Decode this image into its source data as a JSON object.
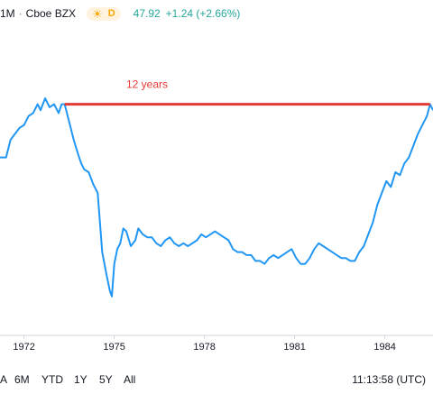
{
  "header": {
    "interval": "1M",
    "separator": "·",
    "exchange": "Cboe BZX",
    "sun_icon": "sun-icon",
    "d_badge": "D",
    "price": "47.92",
    "change": "+1.24 (+2.66%)",
    "change_color": "#26a69a"
  },
  "footer": {
    "ranges": [
      "A",
      "6M",
      "YTD",
      "1Y",
      "5Y",
      "All"
    ],
    "time": "11:13:58 (UTC)"
  },
  "chart_data": {
    "type": "line",
    "x_tick_labels": [
      "1972",
      "1975",
      "1978",
      "1981",
      "1984"
    ],
    "x_ticks": [
      1972,
      1975,
      1978,
      1981,
      1984
    ],
    "xlim": [
      1971.2,
      1985.6
    ],
    "ylim": [
      0,
      100
    ],
    "series": [
      {
        "color": "#2196f3",
        "x": [
          1971.2,
          1971.4,
          1971.55,
          1971.7,
          1971.85,
          1972.0,
          1972.15,
          1972.3,
          1972.45,
          1972.55,
          1972.7,
          1972.85,
          1973.0,
          1973.15,
          1973.25,
          1973.35,
          1973.5,
          1973.65,
          1973.8,
          1973.9,
          1974.0,
          1974.15,
          1974.3,
          1974.45,
          1974.6,
          1974.75,
          1974.85,
          1974.92,
          1975.0,
          1975.1,
          1975.2,
          1975.3,
          1975.4,
          1975.55,
          1975.7,
          1975.8,
          1975.95,
          1976.1,
          1976.25,
          1976.4,
          1976.55,
          1976.7,
          1976.85,
          1977.0,
          1977.15,
          1977.3,
          1977.45,
          1977.6,
          1977.75,
          1977.9,
          1978.05,
          1978.2,
          1978.35,
          1978.5,
          1978.65,
          1978.8,
          1978.95,
          1979.1,
          1979.25,
          1979.4,
          1979.55,
          1979.7,
          1979.85,
          1980.0,
          1980.15,
          1980.3,
          1980.45,
          1980.6,
          1980.75,
          1980.9,
          1981.05,
          1981.2,
          1981.35,
          1981.5,
          1981.65,
          1981.8,
          1981.95,
          1982.1,
          1982.25,
          1982.4,
          1982.55,
          1982.7,
          1982.85,
          1983.0,
          1983.15,
          1983.3,
          1983.45,
          1983.6,
          1983.75,
          1983.9,
          1984.05,
          1984.2,
          1984.35,
          1984.5,
          1984.65,
          1984.8,
          1984.95,
          1985.1,
          1985.25,
          1985.4,
          1985.5,
          1985.6
        ],
        "values": [
          62,
          62,
          68,
          70,
          72,
          73,
          76,
          77,
          80,
          78,
          82,
          79,
          80,
          77,
          80,
          80,
          74,
          68,
          63,
          60,
          58,
          57,
          53,
          50,
          30,
          22,
          17,
          15,
          26,
          31,
          33,
          38,
          37,
          32,
          34,
          38,
          36,
          35,
          35,
          33,
          32,
          34,
          35,
          33,
          32,
          33,
          32,
          33,
          34,
          36,
          35,
          36,
          37,
          36,
          35,
          34,
          31,
          30,
          30,
          29,
          29,
          27,
          27,
          26,
          28,
          29,
          28,
          29,
          30,
          31,
          28,
          26,
          26,
          28,
          31,
          33,
          32,
          31,
          30,
          29,
          28,
          28,
          27,
          27,
          30,
          32,
          36,
          40,
          46,
          50,
          54,
          52,
          57,
          56,
          60,
          62,
          66,
          70,
          73,
          76,
          80,
          78
        ]
      }
    ],
    "annotations": [
      {
        "text": "12 years",
        "color": "#e53935",
        "x_start": 1973.35,
        "x_end": 1985.5,
        "y": 80
      }
    ],
    "grid": false,
    "legend": "none"
  }
}
